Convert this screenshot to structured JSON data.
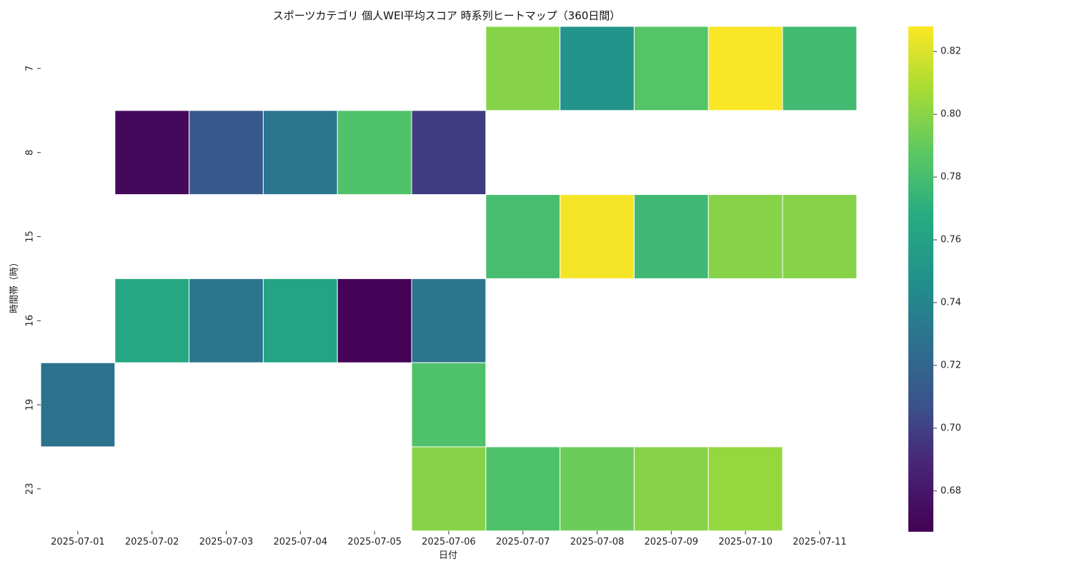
{
  "chart_data": {
    "type": "heatmap",
    "title": "スポーツカテゴリ 個人WEI平均スコア 時系列ヒートマップ（360日間）",
    "xlabel": "日付",
    "ylabel": "時間帯（時）",
    "x": [
      "2025-07-01",
      "2025-07-02",
      "2025-07-03",
      "2025-07-04",
      "2025-07-05",
      "2025-07-06",
      "2025-07-07",
      "2025-07-08",
      "2025-07-09",
      "2025-07-10",
      "2025-07-11"
    ],
    "y": [
      "7",
      "8",
      "15",
      "16",
      "19",
      "23"
    ],
    "values": [
      [
        null,
        null,
        null,
        null,
        null,
        null,
        0.799,
        0.75,
        0.785,
        0.827,
        0.778
      ],
      [
        null,
        0.672,
        0.712,
        0.73,
        0.783,
        0.698,
        null,
        null,
        null,
        null,
        null
      ],
      [
        null,
        null,
        null,
        null,
        null,
        null,
        0.78,
        0.826,
        0.777,
        0.799,
        0.799
      ],
      [
        null,
        0.764,
        0.73,
        0.762,
        0.668,
        0.73,
        null,
        null,
        null,
        null,
        null
      ],
      [
        0.728,
        null,
        null,
        null,
        null,
        0.783,
        null,
        null,
        null,
        null,
        null
      ],
      [
        null,
        null,
        null,
        null,
        null,
        0.799,
        0.783,
        0.792,
        0.799,
        0.803,
        null
      ]
    ],
    "colorbar": {
      "colormap": "viridis",
      "range": [
        0.667,
        0.828
      ],
      "ticks": [
        "0.68",
        "0.70",
        "0.72",
        "0.74",
        "0.76",
        "0.78",
        "0.80",
        "0.82"
      ]
    },
    "grid": false,
    "legend": "colorbar-right"
  }
}
